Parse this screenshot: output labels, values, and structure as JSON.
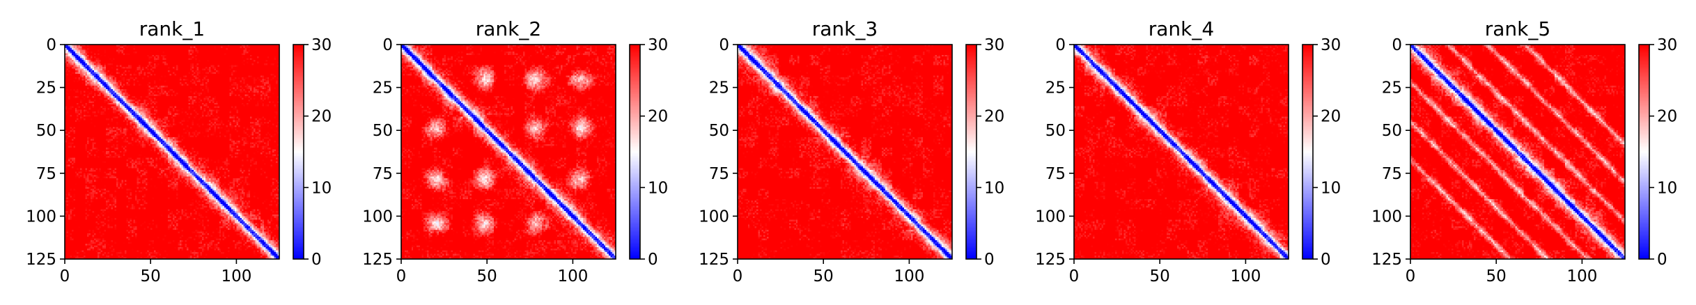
{
  "colors": {
    "low": "#0000ff",
    "mid": "#ffffff",
    "high": "#ff0000",
    "axis": "#000000"
  },
  "chart_data": [
    {
      "type": "heatmap",
      "title": "rank_1",
      "xlabel": "",
      "ylabel": "",
      "xlim": [
        0,
        125
      ],
      "ylim": [
        125,
        0
      ],
      "xticks": [
        "0",
        "50",
        "100"
      ],
      "yticks": [
        "0",
        "25",
        "50",
        "75",
        "100",
        "125"
      ],
      "matrix_size": 125,
      "colorbar": {
        "range": [
          0,
          30
        ],
        "ticks": [
          "0",
          "10",
          "20",
          "30"
        ],
        "colormap": "bwr"
      },
      "pattern": {
        "diagonal_width": 4,
        "off_diagonal_bands": []
      }
    },
    {
      "type": "heatmap",
      "title": "rank_2",
      "xlabel": "",
      "ylabel": "",
      "xlim": [
        0,
        125
      ],
      "ylim": [
        125,
        0
      ],
      "xticks": [
        "0",
        "50",
        "100"
      ],
      "yticks": [
        "0",
        "25",
        "50",
        "75",
        "100",
        "125"
      ],
      "matrix_size": 125,
      "colorbar": {
        "range": [
          0,
          30
        ],
        "ticks": [
          "0",
          "10",
          "20",
          "30"
        ],
        "colormap": "bwr"
      },
      "pattern": {
        "diagonal_width": 4,
        "off_diagonal_bands": [],
        "contact_blobs": [
          [
            20,
            48
          ],
          [
            20,
            78
          ],
          [
            48,
            78
          ],
          [
            48,
            104
          ],
          [
            78,
            104
          ],
          [
            20,
            104
          ]
        ]
      }
    },
    {
      "type": "heatmap",
      "title": "rank_3",
      "xlabel": "",
      "ylabel": "",
      "xlim": [
        0,
        125
      ],
      "ylim": [
        125,
        0
      ],
      "xticks": [
        "0",
        "50",
        "100"
      ],
      "yticks": [
        "0",
        "25",
        "50",
        "75",
        "100",
        "125"
      ],
      "matrix_size": 125,
      "colorbar": {
        "range": [
          0,
          30
        ],
        "ticks": [
          "0",
          "10",
          "20",
          "30"
        ],
        "colormap": "bwr"
      },
      "pattern": {
        "diagonal_width": 4,
        "off_diagonal_bands": []
      }
    },
    {
      "type": "heatmap",
      "title": "rank_4",
      "xlabel": "",
      "ylabel": "",
      "xlim": [
        0,
        125
      ],
      "ylim": [
        125,
        0
      ],
      "xticks": [
        "0",
        "50",
        "100"
      ],
      "yticks": [
        "0",
        "25",
        "50",
        "75",
        "100",
        "125"
      ],
      "matrix_size": 125,
      "colorbar": {
        "range": [
          0,
          30
        ],
        "ticks": [
          "0",
          "10",
          "20",
          "30"
        ],
        "colormap": "bwr"
      },
      "pattern": {
        "diagonal_width": 4,
        "off_diagonal_bands": []
      }
    },
    {
      "type": "heatmap",
      "title": "rank_5",
      "xlabel": "",
      "ylabel": "",
      "xlim": [
        0,
        125
      ],
      "ylim": [
        125,
        0
      ],
      "xticks": [
        "0",
        "50",
        "100"
      ],
      "yticks": [
        "0",
        "25",
        "50",
        "75",
        "100",
        "125"
      ],
      "matrix_size": 125,
      "colorbar": {
        "range": [
          0,
          30
        ],
        "ticks": [
          "0",
          "10",
          "20",
          "30"
        ],
        "colormap": "bwr"
      },
      "pattern": {
        "diagonal_width": 4,
        "off_diagonal_bands": [
          22,
          45,
          67
        ]
      }
    }
  ]
}
